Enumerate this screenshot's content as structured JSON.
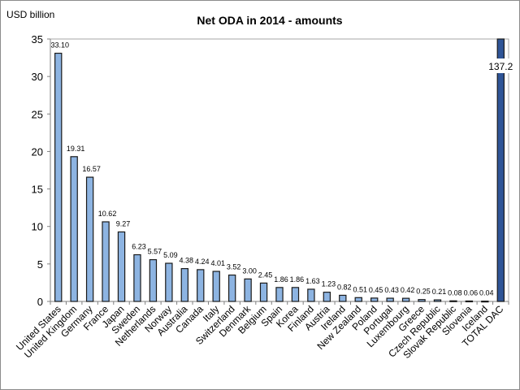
{
  "chart_data": {
    "type": "bar",
    "title": "Net ODA in 2014 - amounts",
    "ylabel": "USD billion",
    "xlabel": "",
    "ylim": [
      0,
      35
    ],
    "yticks": [
      0,
      5,
      10,
      15,
      20,
      25,
      30,
      35
    ],
    "grid": false,
    "legend": "none",
    "categories": [
      "United States",
      "United Kingdom",
      "Germany",
      "France",
      "Japan",
      "Sweden",
      "Netherlands",
      "Norway",
      "Australia",
      "Canada",
      "Italy",
      "Switzerland",
      "Denmark",
      "Belgium",
      "Spain",
      "Korea",
      "Finland",
      "Austria",
      "Ireland",
      "New Zealand",
      "Poland",
      "Portugal",
      "Luxembourg",
      "Greece",
      "Czech Republic",
      "Slovak Republic",
      "Slovenia",
      "Iceland",
      "TOTAL DAC"
    ],
    "values": [
      33.1,
      19.31,
      16.57,
      10.62,
      9.27,
      6.23,
      5.57,
      5.09,
      4.38,
      4.24,
      4.01,
      3.52,
      3.0,
      2.45,
      1.86,
      1.86,
      1.63,
      1.23,
      0.82,
      0.51,
      0.45,
      0.43,
      0.42,
      0.25,
      0.21,
      0.08,
      0.06,
      0.04,
      137.2
    ],
    "data_labels": [
      "33.10",
      "19.31",
      "16.57",
      "10.62",
      "9.27",
      "6.23",
      "5.57",
      "5.09",
      "4.38",
      "4.24",
      "4.01",
      "3.52",
      "3.00",
      "2.45",
      "1.86",
      "1.86",
      "1.63",
      "1.23",
      "0.82",
      "0.51",
      "0.45",
      "0.43",
      "0.42",
      "0.25",
      "0.21",
      "0.08",
      "0.06",
      "0.04",
      "137.2"
    ],
    "colors": {
      "country_bar": "#8db4e2",
      "total_bar": "#2f5597",
      "bar_outline": "#1a1a1a",
      "axis": "#808080"
    },
    "truncated_bar": "TOTAL DAC"
  }
}
